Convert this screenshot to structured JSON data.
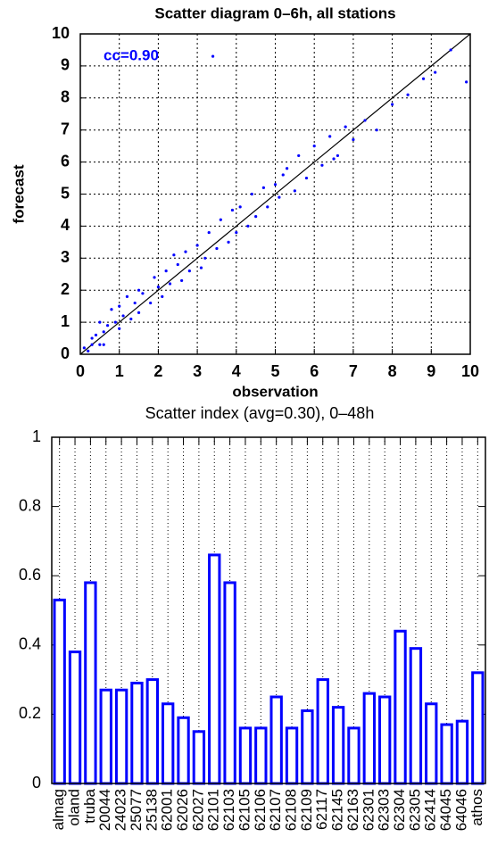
{
  "chart_data": [
    {
      "type": "scatter",
      "title": "Scatter diagram 0–6h, all stations",
      "x_label": "observation",
      "y_label": "forecast",
      "annotation": "cc=0.90",
      "annotation_color": "#0000ff",
      "color": "#0000ff",
      "grid": true,
      "xlim": [
        0,
        10
      ],
      "ylim": [
        0,
        10
      ],
      "xticks": [
        0,
        1,
        2,
        3,
        4,
        5,
        6,
        7,
        8,
        9,
        10
      ],
      "yticks": [
        0,
        1,
        2,
        3,
        4,
        5,
        6,
        7,
        8,
        9,
        10
      ],
      "x": [
        0.1,
        0.2,
        0.3,
        0.3,
        0.4,
        0.5,
        0.5,
        0.6,
        0.7,
        0.8,
        0.9,
        1.0,
        1.0,
        1.1,
        1.2,
        1.3,
        1.4,
        1.5,
        1.5,
        1.6,
        1.8,
        1.9,
        2.0,
        2.1,
        2.2,
        2.3,
        2.5,
        2.6,
        2.7,
        2.8,
        3.0,
        3.1,
        3.2,
        3.3,
        3.5,
        3.6,
        3.8,
        3.9,
        4.0,
        4.1,
        4.3,
        4.4,
        4.5,
        4.7,
        4.8,
        5.0,
        5.1,
        5.3,
        5.5,
        5.6,
        5.8,
        6.0,
        6.2,
        6.4,
        6.6,
        6.8,
        7.0,
        7.3,
        7.6,
        8.0,
        8.4,
        8.8,
        9.1,
        9.5,
        9.9,
        3.4,
        0.6,
        2.4,
        5.2,
        6.5
      ],
      "values": [
        0.2,
        0.1,
        0.5,
        0.3,
        0.6,
        0.3,
        1.0,
        0.7,
        0.9,
        1.4,
        1.0,
        0.8,
        1.5,
        1.2,
        1.8,
        1.1,
        1.6,
        2.0,
        1.3,
        1.9,
        1.6,
        2.4,
        2.1,
        1.8,
        2.6,
        2.2,
        2.8,
        2.3,
        3.2,
        2.6,
        3.4,
        2.7,
        3.0,
        3.8,
        3.3,
        4.2,
        3.5,
        4.5,
        3.8,
        4.6,
        4.0,
        5.0,
        4.3,
        5.2,
        4.6,
        5.3,
        4.9,
        5.8,
        5.1,
        6.2,
        5.5,
        6.5,
        5.9,
        6.8,
        6.2,
        7.1,
        6.7,
        7.3,
        7.0,
        7.8,
        8.1,
        8.6,
        8.8,
        9.5,
        8.5,
        9.3,
        0.3,
        3.1,
        5.6,
        6.1
      ]
    },
    {
      "type": "bar",
      "title": "Scatter index (avg=0.30), 0–48h",
      "color": "#0000ff",
      "grid": true,
      "ylim": [
        0,
        1
      ],
      "yticks": [
        0,
        0.2,
        0.4,
        0.6,
        0.8,
        1
      ],
      "categories": [
        "almag",
        "oland",
        "truba",
        "20044",
        "24023",
        "25077",
        "25138",
        "62001",
        "62026",
        "62027",
        "62101",
        "62103",
        "62105",
        "62106",
        "62107",
        "62108",
        "62109",
        "62117",
        "62145",
        "62163",
        "62301",
        "62303",
        "62304",
        "62305",
        "62414",
        "64045",
        "64046",
        "athos"
      ],
      "values": [
        0.53,
        0.38,
        0.58,
        0.27,
        0.27,
        0.29,
        0.3,
        0.23,
        0.19,
        0.15,
        0.66,
        0.58,
        0.16,
        0.16,
        0.25,
        0.16,
        0.21,
        0.3,
        0.22,
        0.16,
        0.26,
        0.25,
        0.44,
        0.39,
        0.23,
        0.17,
        0.18,
        0.32
      ]
    }
  ]
}
